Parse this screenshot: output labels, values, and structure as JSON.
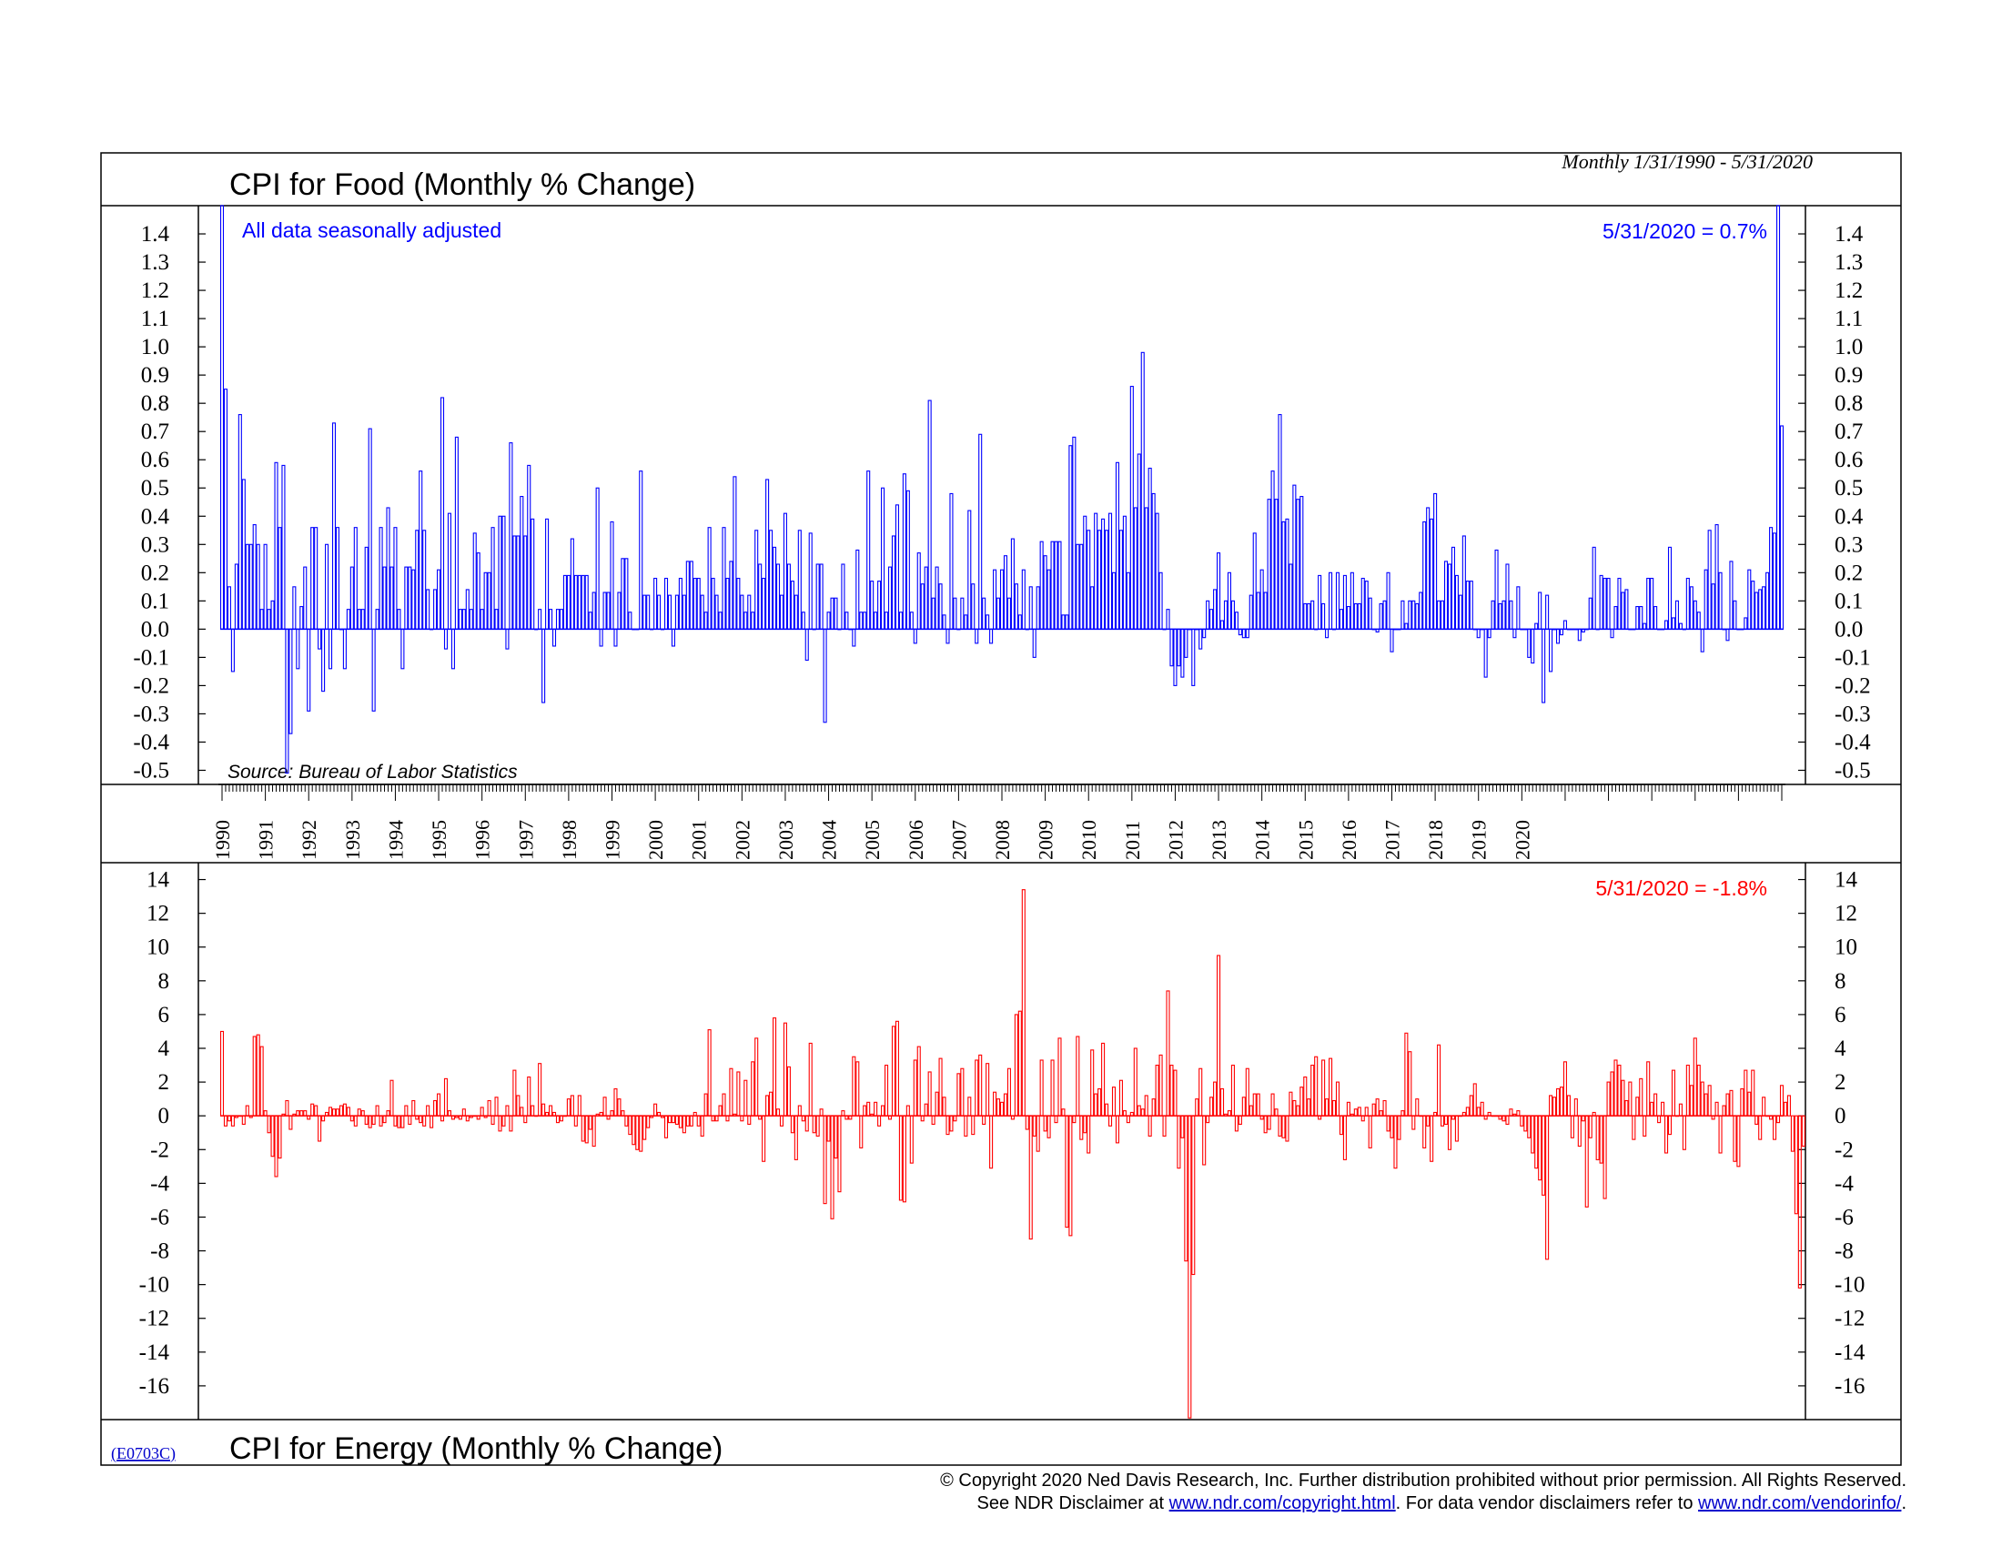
{
  "header": {
    "top_title": "CPI for Food (Monthly % Change)",
    "date_range": "Monthly 1/31/1990 - 5/31/2020",
    "bottom_title": "CPI for Energy (Monthly % Change)",
    "chart_code": "(E0703C)"
  },
  "top_panel": {
    "note": "All data seasonally adjusted",
    "latest": "5/31/2020 = 0.7%",
    "source": "Source: Bureau of Labor Statistics",
    "color": "#0000ff"
  },
  "bottom_panel": {
    "latest": "5/31/2020 = -1.8%",
    "color": "#ff0000"
  },
  "footer": {
    "copyright": "© Copyright 2020 Ned Davis Research, Inc.  Further distribution prohibited without prior permission.  All Rights Reserved.",
    "disclaimer_prefix": "See NDR Disclaimer at ",
    "disclaimer_link": "www.ndr.com/copyright.html",
    "disclaimer_middle": ". For data vendor disclaimers refer to ",
    "vendor_link": "www.ndr.com/vendorinfo/",
    "disclaimer_suffix": "."
  },
  "chart_data": [
    {
      "type": "bar",
      "title": "CPI for Food (Monthly % Change)",
      "frequency": "Monthly",
      "x_start": "1990-01-31",
      "x_end": "2020-05-31",
      "x_tick_labels": [
        "1990",
        "1991",
        "1992",
        "1993",
        "1994",
        "1995",
        "1996",
        "1997",
        "1998",
        "1999",
        "2000",
        "2001",
        "2002",
        "2003",
        "2004",
        "2005",
        "2006",
        "2007",
        "2008",
        "2009",
        "2010",
        "2011",
        "2012",
        "2013",
        "2014",
        "2015",
        "2016",
        "2017",
        "2018",
        "2019",
        "2020"
      ],
      "y_tick_labels": [
        "1.4",
        "1.3",
        "1.2",
        "1.1",
        "1.0",
        "0.9",
        "0.8",
        "0.7",
        "0.6",
        "0.5",
        "0.4",
        "0.3",
        "0.2",
        "0.1",
        "0.0",
        "-0.1",
        "-0.2",
        "-0.3",
        "-0.4",
        "-0.5"
      ],
      "ylim": [
        -0.55,
        1.5
      ],
      "series": [
        {
          "values": [
            1.5,
            0.85,
            0.15,
            -0.15,
            0.23,
            0.76,
            0.53,
            0.3,
            0.3,
            0.37,
            0.3,
            0.07,
            0.3,
            0.07,
            0.1,
            0.59,
            0.36,
            0.58,
            -0.51,
            -0.37,
            0.15,
            -0.14,
            0.08,
            0.22,
            -0.29,
            0.36,
            0.36,
            -0.07,
            -0.22,
            0.3,
            -0.14,
            0.73,
            0.36,
            0.0,
            -0.14,
            0.07,
            0.22,
            0.36,
            0.07,
            0.07,
            0.29,
            0.71,
            -0.29,
            0.07,
            0.36,
            0.22,
            0.43,
            0.22,
            0.36,
            0.07,
            -0.14,
            0.22,
            0.22,
            0.21,
            0.35,
            0.56,
            0.35,
            0.14,
            0.0,
            0.14,
            0.21,
            0.82,
            -0.07,
            0.41,
            -0.14,
            0.68,
            0.07,
            0.07,
            0.14,
            0.07,
            0.34,
            0.27,
            0.07,
            0.2,
            0.2,
            0.36,
            0.07,
            0.4,
            0.4,
            -0.07,
            0.66,
            0.33,
            0.33,
            0.47,
            0.33,
            0.58,
            0.39,
            0.0,
            0.07,
            -0.26,
            0.39,
            0.07,
            -0.06,
            0.07,
            0.07,
            0.19,
            0.19,
            0.32,
            0.19,
            0.19,
            0.19,
            0.19,
            0.06,
            0.13,
            0.5,
            -0.06,
            0.13,
            0.13,
            0.38,
            -0.06,
            0.13,
            0.25,
            0.25,
            0.06,
            0.0,
            0.0,
            0.56,
            0.12,
            0.12,
            0.0,
            0.18,
            0.12,
            0.0,
            0.18,
            0.12,
            -0.06,
            0.12,
            0.18,
            0.12,
            0.24,
            0.24,
            0.18,
            0.18,
            0.12,
            0.06,
            0.36,
            0.18,
            0.12,
            0.06,
            0.36,
            0.18,
            0.24,
            0.54,
            0.18,
            0.12,
            0.06,
            0.12,
            0.06,
            0.35,
            0.23,
            0.18,
            0.53,
            0.35,
            0.29,
            0.23,
            0.12,
            0.41,
            0.23,
            0.17,
            0.12,
            0.35,
            0.06,
            -0.11,
            0.34,
            0.0,
            0.23,
            0.23,
            -0.33,
            0.06,
            0.11,
            0.11,
            0.0,
            0.23,
            0.06,
            0.0,
            -0.06,
            0.28,
            0.06,
            0.06,
            0.56,
            0.17,
            0.06,
            0.17,
            0.5,
            0.06,
            0.22,
            0.33,
            0.44,
            0.06,
            0.55,
            0.49,
            0.06,
            -0.05,
            0.27,
            0.16,
            0.22,
            0.81,
            0.11,
            0.22,
            0.16,
            0.05,
            -0.05,
            0.48,
            0.11,
            0.0,
            0.11,
            0.05,
            0.42,
            0.16,
            -0.05,
            0.69,
            0.11,
            0.05,
            -0.05,
            0.21,
            0.11,
            0.21,
            0.26,
            0.11,
            0.32,
            0.16,
            0.05,
            0.21,
            0.0,
            0.15,
            -0.1,
            0.15,
            0.31,
            0.26,
            0.21,
            0.31,
            0.31,
            0.31,
            0.05,
            0.05,
            0.65,
            0.68,
            0.3,
            0.3,
            0.4,
            0.35,
            0.15,
            0.41,
            0.35,
            0.39,
            0.35,
            0.41,
            0.2,
            0.59,
            0.35,
            0.4,
            0.2,
            0.86,
            0.43,
            0.62,
            0.98,
            0.43,
            0.57,
            0.48,
            0.41,
            0.2,
            0.0,
            0.07,
            -0.13,
            -0.2,
            -0.13,
            -0.17,
            -0.1,
            0.0,
            -0.2,
            0.0,
            -0.07,
            -0.03,
            0.1,
            0.07,
            0.14,
            0.27,
            0.03,
            0.1,
            0.2,
            0.1,
            0.06,
            -0.02,
            -0.03,
            -0.03,
            0.12,
            0.34,
            0.13,
            0.21,
            0.13,
            0.46,
            0.56,
            0.46,
            0.76,
            0.38,
            0.39,
            0.23,
            0.51,
            0.46,
            0.47,
            0.09,
            0.09,
            0.1,
            0.0,
            0.19,
            0.09,
            -0.03,
            0.2,
            0.0,
            0.2,
            0.07,
            0.19,
            0.08,
            0.2,
            0.09,
            0.09,
            0.18,
            0.17,
            0.11,
            0.0,
            -0.01,
            0.09,
            0.1,
            0.2,
            -0.08,
            0.0,
            0.0,
            0.1,
            0.02,
            0.1,
            0.1,
            0.09,
            0.13,
            0.38,
            0.43,
            0.39,
            0.48,
            0.1,
            0.1,
            0.24,
            0.23,
            0.29,
            0.19,
            0.12,
            0.33,
            0.17,
            0.17,
            0.0,
            -0.03,
            0.0,
            -0.17,
            -0.03,
            0.1,
            0.28,
            0.09,
            0.1,
            0.23,
            0.1,
            -0.03,
            0.15,
            0.0,
            0.0,
            -0.1,
            -0.12,
            0.02,
            0.13,
            -0.26,
            0.12,
            -0.15,
            0.0,
            -0.05,
            -0.02,
            0.03,
            0.0,
            0.0,
            0.0,
            -0.04,
            -0.01,
            0.0,
            0.11,
            0.29,
            0.0,
            0.19,
            0.18,
            0.18,
            -0.03,
            0.08,
            0.18,
            0.13,
            0.14,
            0.0,
            0.0,
            0.08,
            0.08,
            0.02,
            0.18,
            0.18,
            0.08,
            0.0,
            0.0,
            0.03,
            0.29,
            0.04,
            0.1,
            0.02,
            0.0,
            0.18,
            0.15,
            0.1,
            0.06,
            -0.08,
            0.21,
            0.35,
            0.16,
            0.37,
            0.2,
            0.0,
            -0.04,
            0.24,
            0.1,
            0.0,
            0.0,
            0.04,
            0.21,
            0.17,
            0.13,
            0.14,
            0.15,
            0.2,
            0.36,
            0.34,
            1.5,
            0.72
          ]
        }
      ]
    },
    {
      "type": "bar",
      "title": "CPI for Energy (Monthly % Change)",
      "frequency": "Monthly",
      "x_start": "1990-01-31",
      "x_end": "2020-05-31",
      "y_tick_labels": [
        "14",
        "12",
        "10",
        "8",
        "6",
        "4",
        "2",
        "0",
        "-2",
        "-4",
        "-6",
        "-8",
        "-10",
        "-12",
        "-14",
        "-16"
      ],
      "ylim": [
        -18,
        15
      ],
      "series": [
        {
          "values": [
            5.0,
            -0.6,
            -0.3,
            -0.6,
            -0.1,
            0.0,
            -0.5,
            0.6,
            -0.1,
            4.7,
            4.8,
            4.1,
            0.3,
            -1.0,
            -2.4,
            -3.6,
            -2.5,
            0.1,
            0.9,
            -0.8,
            0.1,
            0.3,
            0.3,
            0.3,
            -0.2,
            0.7,
            0.6,
            -1.5,
            -0.3,
            0.2,
            0.5,
            0.4,
            0.4,
            0.6,
            0.7,
            0.5,
            -0.3,
            -0.6,
            0.4,
            0.3,
            -0.5,
            -0.7,
            -0.5,
            0.6,
            -0.6,
            -0.4,
            0.3,
            2.1,
            -0.6,
            -0.7,
            -0.7,
            0.6,
            -0.5,
            0.9,
            -0.2,
            -0.4,
            -0.6,
            0.6,
            -0.7,
            0.9,
            1.3,
            -0.3,
            2.2,
            0.3,
            -0.2,
            -0.1,
            -0.2,
            0.4,
            -0.3,
            -0.1,
            0.0,
            -0.2,
            0.5,
            -0.1,
            0.9,
            -0.5,
            1.1,
            -0.9,
            -0.6,
            0.6,
            -0.9,
            2.7,
            1.2,
            0.5,
            -0.4,
            2.3,
            0.6,
            0.0,
            3.1,
            0.7,
            0.2,
            0.6,
            0.2,
            -0.4,
            -0.3,
            0.0,
            1.0,
            1.2,
            -0.6,
            1.2,
            -1.5,
            -1.6,
            -0.8,
            -1.8,
            0.1,
            0.2,
            1.1,
            -0.2,
            0.3,
            1.6,
            1.0,
            0.3,
            -0.6,
            -1.1,
            -1.7,
            -2.0,
            -2.1,
            -1.4,
            -0.7,
            -0.1,
            0.7,
            0.2,
            -0.1,
            -1.3,
            -0.4,
            -0.4,
            -0.5,
            -0.7,
            -1.0,
            -0.6,
            -0.6,
            0.2,
            -0.6,
            -1.2,
            1.3,
            5.1,
            -0.3,
            -0.3,
            0.6,
            1.3,
            -0.3,
            2.8,
            0.1,
            2.6,
            -0.3,
            2.1,
            -0.5,
            3.2,
            4.6,
            -0.2,
            -2.7,
            1.2,
            1.4,
            5.8,
            0.4,
            -0.6,
            5.5,
            2.9,
            -1.0,
            -2.6,
            0.6,
            -0.3,
            -0.9,
            4.3,
            -1.0,
            -1.2,
            0.4,
            -5.2,
            -1.5,
            -6.1,
            -2.5,
            -4.5,
            0.3,
            -0.2,
            -0.2,
            3.5,
            3.2,
            -1.9,
            0.6,
            0.8,
            0.1,
            0.8,
            -0.6,
            0.6,
            3.0,
            -0.2,
            5.3,
            5.6,
            -5.0,
            -5.1,
            0.6,
            -2.8,
            3.3,
            4.1,
            -0.3,
            0.7,
            2.6,
            -0.5,
            1.4,
            3.4,
            1.1,
            -1.1,
            -0.9,
            -0.3,
            2.5,
            2.8,
            -1.2,
            1.1,
            -1.1,
            3.3,
            3.6,
            -0.5,
            3.1,
            -3.1,
            1.4,
            1.0,
            0.8,
            1.3,
            2.8,
            -0.2,
            6.0,
            6.2,
            13.4,
            -0.8,
            -7.3,
            -1.2,
            -2.1,
            3.3,
            -0.9,
            -1.3,
            3.3,
            -0.4,
            4.6,
            0.4,
            -6.6,
            -7.1,
            -0.4,
            4.7,
            -1.4,
            -1.0,
            -2.2,
            3.9,
            1.3,
            1.6,
            4.3,
            0.7,
            -0.6,
            1.7,
            -1.6,
            2.1,
            0.3,
            -0.4,
            0.2,
            4.0,
            0.6,
            0.4,
            1.2,
            -1.2,
            1.0,
            3.0,
            3.6,
            -1.2,
            7.4,
            3.0,
            2.7,
            -3.1,
            -1.3,
            -8.6,
            -17.9,
            -9.4,
            1.0,
            2.8,
            -2.9,
            -0.4,
            1.1,
            2.0,
            9.5,
            1.6,
            0.1,
            0.3,
            3.0,
            -0.9,
            -0.5,
            1.1,
            2.8,
            0.6,
            1.3,
            1.3,
            -0.2,
            -1.0,
            -0.8,
            1.3,
            0.4,
            -1.2,
            -1.3,
            -1.5,
            1.4,
            0.9,
            0.6,
            1.7,
            2.3,
            1.0,
            3.0,
            3.5,
            -0.2,
            3.3,
            1.0,
            3.4,
            0.9,
            2.0,
            -1.1,
            -2.6,
            0.8,
            0.1,
            0.4,
            0.5,
            -0.3,
            0.5,
            -1.9,
            0.7,
            1.0,
            0.3,
            0.9,
            -0.9,
            -1.3,
            -3.1,
            -1.4,
            0.3,
            4.9,
            3.8,
            -0.8,
            1.0,
            0.0,
            -1.9,
            -0.6,
            -2.7,
            0.2,
            4.2,
            -0.6,
            -0.5,
            -2.0,
            -0.2,
            -1.5,
            0.0,
            0.2,
            0.5,
            1.2,
            1.9,
            0.5,
            0.8,
            -0.2,
            0.2,
            0.0,
            0.0,
            -0.2,
            -0.3,
            -0.5,
            0.4,
            0.1,
            0.3,
            -0.6,
            -0.9,
            -1.3,
            -2.2,
            -3.1,
            -3.8,
            -4.7,
            -8.5,
            1.2,
            1.1,
            1.6,
            1.7,
            3.2,
            1.2,
            -1.3,
            1.0,
            -1.8,
            -0.3,
            -5.4,
            -1.3,
            0.2,
            -2.6,
            -2.8,
            -4.9,
            2.0,
            2.6,
            3.3,
            3.0,
            2.1,
            0.9,
            2.0,
            -1.4,
            1.1,
            2.2,
            -1.2,
            3.2,
            0.8,
            1.3,
            -0.4,
            0.8,
            -2.2,
            -1.1,
            2.7,
            0.0,
            0.7,
            -2.0,
            3.0,
            1.8,
            4.6,
            3.0,
            2.0,
            1.3,
            1.8,
            -0.2,
            0.8,
            -2.2,
            0.6,
            1.3,
            1.5,
            -2.7,
            -3.0,
            1.6,
            2.7,
            1.4,
            2.7,
            -0.5,
            -1.4,
            1.1,
            0.0,
            -0.2,
            -1.4,
            -0.4,
            1.8,
            0.8,
            1.2,
            -2.1,
            -5.8,
            -10.2,
            -1.8
          ]
        }
      ]
    }
  ]
}
